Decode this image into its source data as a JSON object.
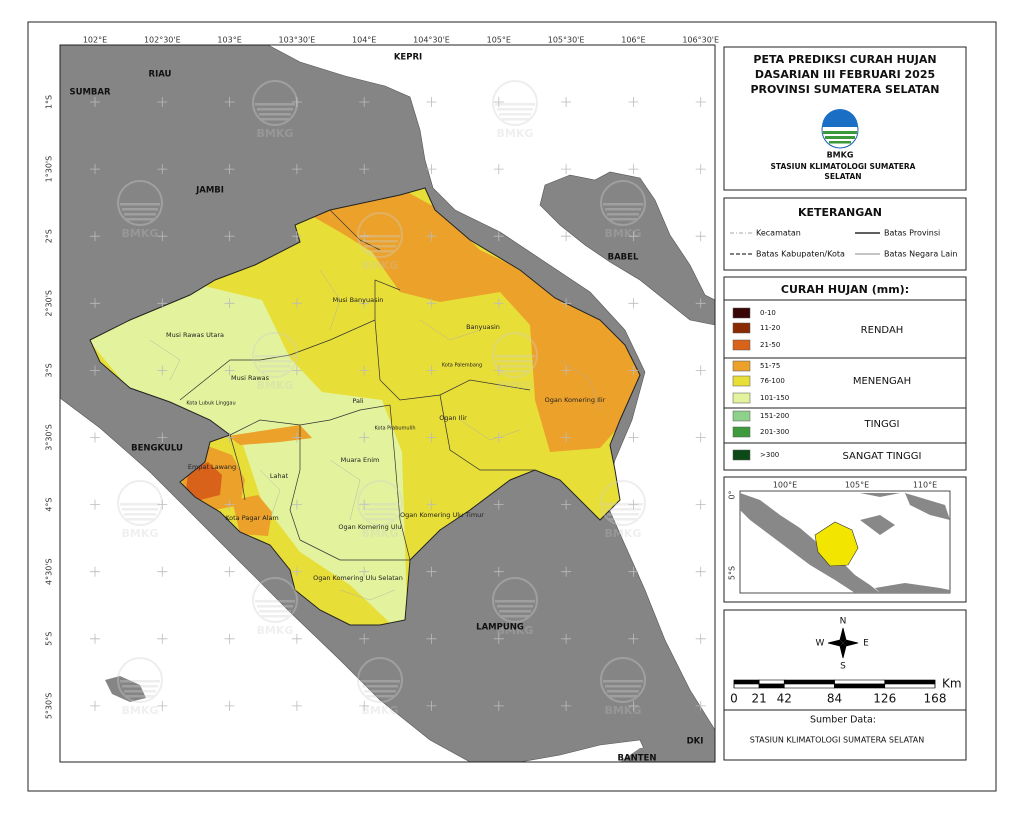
{
  "map": {
    "lon_labels": [
      "102°E",
      "102°30'E",
      "103°E",
      "103°30'E",
      "104°E",
      "104°30'E",
      "105°E",
      "105°30'E",
      "106°E",
      "106°30'E"
    ],
    "lat_labels": [
      "1°S",
      "1°30'S",
      "2°S",
      "2°30'S",
      "3°S",
      "3°30'S",
      "4°S",
      "4°30'S",
      "5°S",
      "5°30'S"
    ],
    "neighbors": [
      "SUMBAR",
      "RIAU",
      "KEPRI",
      "JAMBI",
      "BABEL",
      "BENGKULU",
      "LAMPUNG",
      "BANTEN",
      "DKI"
    ],
    "regions": [
      "Musi Banyuasin",
      "Banyuasin",
      "Musi Rawas Utara",
      "Musi Rawas",
      "Kota Lubuk Linggau",
      "Pali",
      "Kota Palembang",
      "Ogan Komering Ilir",
      "Ogan Ilir",
      "Kota Prabumulih",
      "Muara Enim",
      "Lahat",
      "Empat Lawang",
      "Kota Pagar Alam",
      "Ogan Komering Ulu",
      "Ogan Komering Ulu Timur",
      "Ogan Komering Ulu Selatan"
    ],
    "watermark": "BMKG"
  },
  "header": {
    "title": [
      "PETA PREDIKSI CURAH HUJAN",
      "DASARIAN III FEBRUARI 2025",
      "PROVINSI SUMATERA SELATAN"
    ],
    "logo_text": "BMKG",
    "station": [
      "STASIUN KLIMATOLOGI SUMATERA",
      "SELATAN"
    ]
  },
  "keterangan": {
    "title": "KETERANGAN",
    "items": [
      "Kecamatan",
      "Batas Provinsi",
      "Batas Kabupaten/Kota",
      "Batas Negara Lain"
    ]
  },
  "rainfall": {
    "title": "CURAH HUJAN (mm):",
    "classes": [
      {
        "label": "0-10",
        "color": "#3a0505"
      },
      {
        "label": "11-20",
        "color": "#8a2a02"
      },
      {
        "label": "21-50",
        "color": "#d9621a"
      },
      {
        "label": "51-75",
        "color": "#eca12a"
      },
      {
        "label": "76-100",
        "color": "#e8de38"
      },
      {
        "label": "101-150",
        "color": "#e3f29c"
      },
      {
        "label": "151-200",
        "color": "#8ed18a"
      },
      {
        "label": "201-300",
        "color": "#3e9a3e"
      },
      {
        "label": ">300",
        "color": "#0b4a16"
      }
    ],
    "groups": [
      "RENDAH",
      "MENENGAH",
      "TINGGI",
      "SANGAT TINGGI"
    ]
  },
  "inset": {
    "lon_labels": [
      "100°E",
      "105°E",
      "110°E"
    ],
    "lat_labels": [
      "0°",
      "5°S"
    ]
  },
  "compass": {
    "n": "N",
    "e": "E",
    "s": "S",
    "w": "W"
  },
  "scale": {
    "ticks": [
      0,
      21,
      42,
      84,
      126,
      168
    ],
    "unit": "Km"
  },
  "source": {
    "title": "Sumber Data:",
    "text": "STASIUN KLIMATOLOGI SUMATERA SELATAN"
  }
}
